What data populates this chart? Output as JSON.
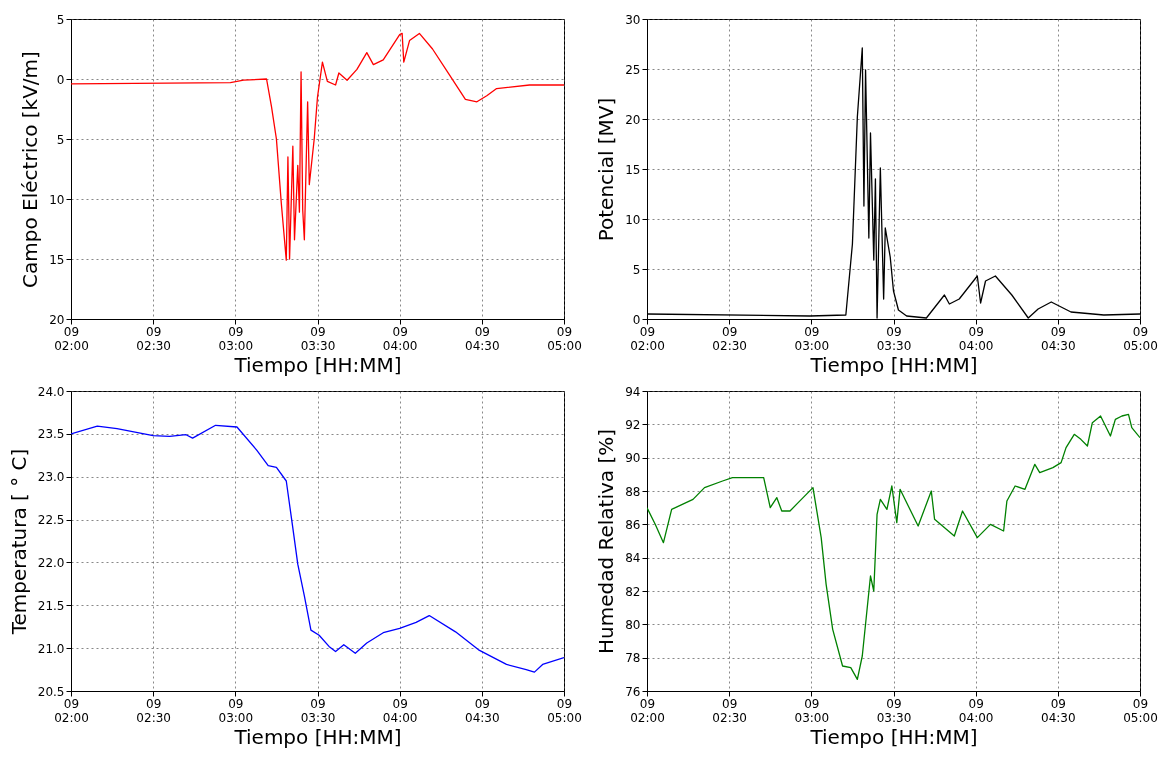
{
  "chart_data": [
    {
      "type": "line",
      "xlabel": "Tiempo [HH:MM]",
      "ylabel": "Campo Eléctrico [kV/m]",
      "grid": true,
      "xlim": [
        "--01-09T02:00",
        "--01-09T05:00"
      ],
      "ylim": [
        20,
        -5
      ],
      "xticks": [
        {
          "value": "--01-09T02:00",
          "label": "09\n02:00"
        },
        {
          "value": "--01-09T02:30",
          "label": "09\n02:30"
        },
        {
          "value": "--01-09T03:00",
          "label": "09\n03:00"
        },
        {
          "value": "--01-09T03:30",
          "label": "09\n03:30"
        },
        {
          "value": "--01-09T04:00",
          "label": "09\n04:00"
        },
        {
          "value": "--01-09T04:30",
          "label": "09\n04:30"
        },
        {
          "value": "--01-09T05:00",
          "label": "09\n05:00"
        }
      ],
      "yticks": [
        {
          "value": -5,
          "label": "5"
        },
        0,
        5,
        10,
        15,
        20
      ],
      "series": [
        {
          "color": "#ff0000",
          "x": [
            "--01-09T02:00",
            "--01-09T02:58:12",
            "--01-09T03:03",
            "--01-09T03:11:24",
            "--01-09T03:13:12",
            "--01-09T03:15",
            "--01-09T03:16:48",
            "--01-09T03:18:36",
            "--01-09T03:19:12",
            "--01-09T03:19:48",
            "--01-09T03:21",
            "--01-09T03:21:36",
            "--01-09T03:22:48",
            "--01-09T03:23:24",
            "--01-09T03:24",
            "--01-09T03:24:36",
            "--01-09T03:25:12",
            "--01-09T03:26:24",
            "--01-09T03:27",
            "--01-09T03:28:48",
            "--01-09T03:30",
            "--01-09T03:31:48",
            "--01-09T03:33:36",
            "--01-09T03:36:36",
            "--01-09T03:37:48",
            "--01-09T03:40:48",
            "--01-09T03:44:24",
            "--01-09T03:48",
            "--01-09T03:50:24",
            "--01-09T03:54",
            "--01-09T04:00",
            "--01-09T04:00:54",
            "--01-09T04:01:30",
            "--01-09T04:03:36",
            "--01-09T04:07:12",
            "--01-09T04:12",
            "--01-09T04:18",
            "--01-09T04:24",
            "--01-09T04:28:12",
            "--01-09T04:31:48",
            "--01-09T04:35:24",
            "--01-09T04:47:24",
            "--01-09T05:00"
          ],
          "values": [
            0.4,
            0.3,
            0.1,
            0,
            2.3,
            5.0,
            10.4,
            15.1,
            6.5,
            15.0,
            5.6,
            13.4,
            7.2,
            11.1,
            -0.6,
            10.9,
            13.4,
            1.9,
            8.8,
            5.0,
            1.5,
            -1.4,
            0.2,
            0.5,
            -0.5,
            0.1,
            -0.8,
            -2.2,
            -1.2,
            -1.6,
            -3.7,
            -3.8,
            -1.4,
            -3.2,
            -3.8,
            -2.5,
            -0.4,
            1.7,
            1.9,
            1.4,
            0.8,
            0.5,
            0.5
          ]
        }
      ]
    },
    {
      "type": "line",
      "xlabel": "Tiempo [HH:MM]",
      "ylabel": "Potencial [MV]",
      "grid": true,
      "xlim": [
        "--01-09T02:00",
        "--01-09T05:00"
      ],
      "ylim": [
        0,
        30
      ],
      "xticks": [
        {
          "value": "--01-09T02:00",
          "label": "09\n02:00"
        },
        {
          "value": "--01-09T02:30",
          "label": "09\n02:30"
        },
        {
          "value": "--01-09T03:00",
          "label": "09\n03:00"
        },
        {
          "value": "--01-09T03:30",
          "label": "09\n03:30"
        },
        {
          "value": "--01-09T04:00",
          "label": "09\n04:00"
        },
        {
          "value": "--01-09T04:30",
          "label": "09\n04:30"
        },
        {
          "value": "--01-09T05:00",
          "label": "09\n05:00"
        }
      ],
      "yticks": [
        0,
        5,
        10,
        15,
        20,
        25,
        30
      ],
      "series": [
        {
          "color": "#000000",
          "x": [
            "--01-09T02:00",
            "--01-09T02:59:24",
            "--01-09T03:12:36",
            "--01-09T03:15",
            "--01-09T03:16:48",
            "--01-09T03:18:36",
            "--01-09T03:19:12",
            "--01-09T03:19:48",
            "--01-09T03:21",
            "--01-09T03:21:36",
            "--01-09T03:22:48",
            "--01-09T03:23:24",
            "--01-09T03:24",
            "--01-09T03:25:12",
            "--01-09T03:26:24",
            "--01-09T03:27",
            "--01-09T03:28:48",
            "--01-09T03:30",
            "--01-09T03:31:48",
            "--01-09T03:34:48",
            "--01-09T03:42",
            "--01-09T03:48:36",
            "--01-09T03:50:24",
            "--01-09T03:54",
            "--01-09T04:00:36",
            "--01-09T04:01:48",
            "--01-09T04:03:36",
            "--01-09T04:07:12",
            "--01-09T04:13:12",
            "--01-09T04:19:12",
            "--01-09T04:22:48",
            "--01-09T04:27:36",
            "--01-09T04:34:48",
            "--01-09T04:46:48",
            "--01-09T05:00"
          ],
          "values": [
            0.5,
            0.3,
            0.4,
            7.5,
            20.2,
            27.1,
            11.3,
            24.9,
            8.1,
            18.6,
            5.9,
            14.0,
            0.1,
            15.1,
            2.0,
            9.1,
            6.2,
            2.8,
            0.9,
            0.3,
            0.1,
            2.4,
            1.5,
            2.0,
            4.3,
            1.6,
            3.8,
            4.3,
            2.4,
            0.1,
            1.0,
            1.7,
            0.7,
            0.4,
            0.5
          ]
        }
      ]
    },
    {
      "type": "line",
      "xlabel": "Tiempo [HH:MM]",
      "ylabel": "Temperatura [ ° C]",
      "grid": true,
      "xlim": [
        "--01-09T02:00",
        "--01-09T05:00"
      ],
      "ylim": [
        20.5,
        24.0
      ],
      "xticks": [
        {
          "value": "--01-09T02:00",
          "label": "09\n02:00"
        },
        {
          "value": "--01-09T02:30",
          "label": "09\n02:30"
        },
        {
          "value": "--01-09T03:00",
          "label": "09\n03:00"
        },
        {
          "value": "--01-09T03:30",
          "label": "09\n03:30"
        },
        {
          "value": "--01-09T04:00",
          "label": "09\n04:00"
        },
        {
          "value": "--01-09T04:30",
          "label": "09\n04:30"
        },
        {
          "value": "--01-09T05:00",
          "label": "09\n05:00"
        }
      ],
      "yticks": [
        20.5,
        {
          "value": 21,
          "label": "21.0"
        },
        21.5,
        {
          "value": 22,
          "label": "22.0"
        },
        22.5,
        {
          "value": 23,
          "label": "23.0"
        },
        23.5,
        {
          "value": 24,
          "label": "24.0"
        }
      ],
      "series": [
        {
          "color": "#0000ff",
          "x": [
            "--01-09T02:00",
            "--01-09T02:09:36",
            "--01-09T02:16:48",
            "--01-09T02:30",
            "--01-09T02:36",
            "--01-09T02:42",
            "--01-09T02:44:24",
            "--01-09T02:52:48",
            "--01-09T03:00:36",
            "--01-09T03:07:48",
            "--01-09T03:12",
            "--01-09T03:15",
            "--01-09T03:18:36",
            "--01-09T03:21",
            "--01-09T03:22:48",
            "--01-09T03:25:12",
            "--01-09T03:27:36",
            "--01-09T03:30:36",
            "--01-09T03:34:12",
            "--01-09T03:36:36",
            "--01-09T03:39:36",
            "--01-09T03:43:48",
            "--01-09T03:48",
            "--01-09T03:54",
            "--01-09T04:00",
            "--01-09T04:06",
            "--01-09T04:10:48",
            "--01-09T04:20:24",
            "--01-09T04:28:48",
            "--01-09T04:39",
            "--01-09T04:46:12",
            "--01-09T04:49:12",
            "--01-09T04:52:12",
            "--01-09T05:00"
          ],
          "values": [
            23.5,
            23.59,
            23.56,
            23.48,
            23.47,
            23.49,
            23.45,
            23.6,
            23.58,
            23.31,
            23.13,
            23.11,
            22.95,
            22.4,
            21.98,
            21.61,
            21.21,
            21.15,
            21.02,
            20.96,
            21.04,
            20.94,
            21.06,
            21.18,
            21.23,
            21.3,
            21.38,
            21.19,
            20.98,
            20.81,
            20.75,
            20.72,
            20.81,
            20.89
          ]
        }
      ]
    },
    {
      "type": "line",
      "xlabel": "Tiempo [HH:MM]",
      "ylabel": "Humedad Relativa [%]",
      "grid": true,
      "xlim": [
        "--01-09T02:00",
        "--01-09T05:00"
      ],
      "ylim": [
        76,
        94
      ],
      "xticks": [
        {
          "value": "--01-09T02:00",
          "label": "09\n02:00"
        },
        {
          "value": "--01-09T02:30",
          "label": "09\n02:30"
        },
        {
          "value": "--01-09T03:00",
          "label": "09\n03:00"
        },
        {
          "value": "--01-09T03:30",
          "label": "09\n03:30"
        },
        {
          "value": "--01-09T04:00",
          "label": "09\n04:00"
        },
        {
          "value": "--01-09T04:30",
          "label": "09\n04:30"
        },
        {
          "value": "--01-09T05:00",
          "label": "09\n05:00"
        }
      ],
      "yticks": [
        76,
        78,
        80,
        82,
        84,
        86,
        88,
        90,
        92,
        94
      ],
      "series": [
        {
          "color": "#008000",
          "x": [
            "--01-09T02:00",
            "--01-09T02:03",
            "--01-09T02:06",
            "--01-09T02:09",
            "--01-09T02:16:48",
            "--01-09T02:21",
            "--01-09T02:27:36",
            "--01-09T02:31:12",
            "--01-09T02:42:36",
            "--01-09T02:45",
            "--01-09T02:47:24",
            "--01-09T02:49:12",
            "--01-09T02:52:12",
            "--01-09T02:55:12",
            "--01-09T03:00:36",
            "--01-09T03:03:36",
            "--01-09T03:05:24",
            "--01-09T03:07:48",
            "--01-09T03:11:24",
            "--01-09T03:14:24",
            "--01-09T03:16:48",
            "--01-09T03:18:36",
            "--01-09T03:21:36",
            "--01-09T03:22:48",
            "--01-09T03:24",
            "--01-09T03:25:12",
            "--01-09T03:27:36",
            "--01-09T03:29:24",
            "--01-09T03:31:12",
            "--01-09T03:32:24",
            "--01-09T03:35:24",
            "--01-09T03:39",
            "--01-09T03:43:48",
            "--01-09T03:45",
            "--01-09T03:52:12",
            "--01-09T03:55:12",
            "--01-09T04:00:36",
            "--01-09T04:05:24",
            "--01-09T04:10:12",
            "--01-09T04:11:24",
            "--01-09T04:14:24",
            "--01-09T04:18",
            "--01-09T04:21:36",
            "--01-09T04:23:24",
            "--01-09T04:28:12",
            "--01-09T04:31:12",
            "--01-09T04:33",
            "--01-09T04:36",
            "--01-09T04:38:24",
            "--01-09T04:40:48",
            "--01-09T04:42:36",
            "--01-09T04:45:36",
            "--01-09T04:49:12",
            "--01-09T04:51",
            "--01-09T04:53:24",
            "--01-09T04:55:48",
            "--01-09T04:57",
            "--01-09T05:00"
          ],
          "values": [
            87.0,
            86.0,
            84.9,
            86.9,
            87.5,
            88.2,
            88.6,
            88.8,
            88.8,
            87.0,
            87.6,
            86.8,
            86.8,
            87.3,
            88.2,
            85.2,
            82.4,
            79.7,
            77.5,
            77.4,
            76.7,
            78.1,
            82.9,
            82.0,
            86.6,
            87.5,
            86.9,
            88.3,
            86.1,
            88.1,
            87.1,
            85.9,
            88.0,
            86.3,
            85.3,
            86.8,
            85.2,
            86.0,
            85.6,
            87.4,
            88.3,
            88.1,
            89.6,
            89.1,
            89.4,
            89.7,
            90.6,
            91.4,
            91.1,
            90.7,
            92.1,
            92.5,
            91.3,
            92.3,
            92.5,
            92.6,
            91.8,
            91.2
          ]
        }
      ]
    }
  ]
}
